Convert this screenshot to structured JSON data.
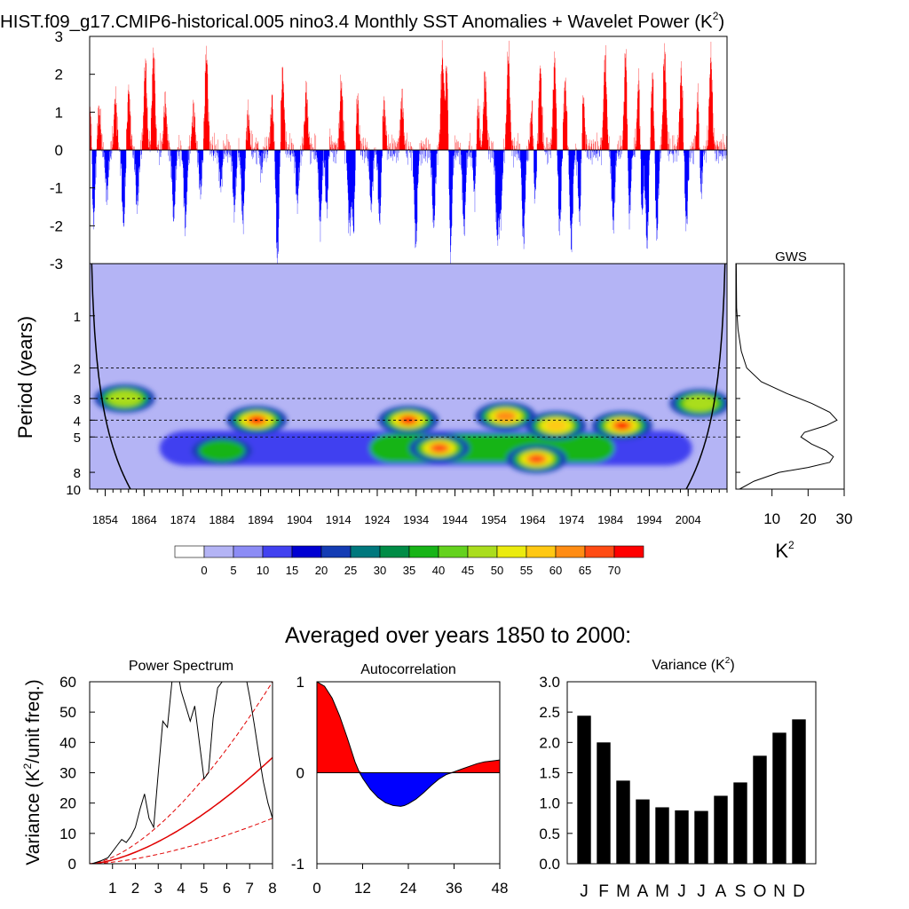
{
  "title": {
    "main": "HIST.f09_g17.CMIP6-historical.005 nino3.4 Monthly SST Anomalies + Wavelet Power (K",
    "sup": "2",
    "close": ")"
  },
  "subtitle": "Averaged over years 1850 to 2000:",
  "colors": {
    "positive": "#ff0000",
    "negative": "#0000ff",
    "spectrum_red": "#e00000",
    "bar": "#000000"
  },
  "chart_data": [
    {
      "type": "bar",
      "name": "timeseries",
      "title": "SST Anomalies",
      "ylim": [
        -3,
        3
      ],
      "yticks": [
        "-3",
        "-2",
        "-1",
        "0",
        "1",
        "2",
        "3"
      ],
      "xlim": [
        1850,
        2014
      ],
      "peaks_x": [
        1850.3,
        1852.4,
        1856.6,
        1860.0,
        1864.3,
        1866.4,
        1869.4,
        1876.7,
        1880.0,
        1883.9,
        1890.7,
        1893.8,
        1896.9,
        1899.6,
        1905.7,
        1911.4,
        1914.7,
        1918.8,
        1925.7,
        1930.3,
        1940.7,
        1941.9,
        1949.8,
        1951.7,
        1957.7,
        1963.9,
        1965.9,
        1969.6,
        1972.3,
        1976.9,
        1982.6,
        1987.9,
        1991.3,
        1994.8,
        1997.9,
        2002.2,
        2006.6,
        2009.8
      ],
      "peaks_y": [
        1.5,
        1.1,
        1.4,
        1.6,
        2.3,
        2.6,
        1.3,
        1.1,
        2.6,
        1.2,
        1.0,
        1.3,
        1.3,
        2.1,
        1.6,
        1.2,
        1.8,
        1.5,
        1.3,
        1.4,
        2.5,
        2.3,
        1.4,
        2.0,
        2.6,
        1.7,
        2.2,
        2.4,
        1.8,
        1.6,
        2.5,
        2.7,
        2.2,
        2.0,
        2.6,
        2.1,
        2.0,
        2.5
      ],
      "troughs_x": [
        1850.9,
        1854.4,
        1858.7,
        1862.2,
        1871.6,
        1874.6,
        1878.5,
        1883.8,
        1887.2,
        1889.4,
        1893.9,
        1898.3,
        1903.4,
        1909.3,
        1911.1,
        1916.8,
        1917.9,
        1922.4,
        1924.6,
        1933.9,
        1938.5,
        1942.8,
        1946.3,
        1949.1,
        1954.8,
        1955.7,
        1961.6,
        1964.4,
        1970.9,
        1973.9,
        1976.1,
        1984.7,
        1988.8,
        1992.0,
        1993.4,
        1995.9,
        2003.5,
        2007.1
      ],
      "troughs_y": [
        -2.3,
        -1.2,
        -2.0,
        -1.5,
        -1.8,
        -2.0,
        -1.1,
        -2.1,
        -1.6,
        -1.9,
        -1.7,
        -2.9,
        -1.4,
        -2.0,
        -2.4,
        -2.0,
        -2.1,
        -1.5,
        -1.9,
        -2.5,
        -2.0,
        -2.8,
        -2.1,
        -1.4,
        -2.2,
        -1.7,
        -2.4,
        -1.8,
        -2.1,
        -2.5,
        -2.0,
        -2.0,
        -1.9,
        -2.0,
        -2.5,
        -2.3,
        -2.0,
        -1.7
      ]
    },
    {
      "type": "heatmap",
      "name": "wavelet",
      "ylabel": "Period (years)",
      "xticks": [
        "1854",
        "1864",
        "1874",
        "1884",
        "1894",
        "1904",
        "1914",
        "1924",
        "1934",
        "1944",
        "1954",
        "1964",
        "1974",
        "1984",
        "1994",
        "2004"
      ],
      "xtick_values": [
        1854,
        1864,
        1874,
        1884,
        1894,
        1904,
        1914,
        1924,
        1934,
        1944,
        1954,
        1964,
        1974,
        1984,
        1994,
        2004
      ],
      "yticks": [
        "1",
        "2",
        "3",
        "4",
        "5",
        "8",
        "10"
      ],
      "ytick_values": [
        1,
        2,
        3,
        4,
        5,
        8,
        10
      ],
      "dashed_periods": [
        2,
        3,
        4,
        5
      ],
      "ylim": [
        0.5,
        10
      ],
      "xlim": [
        1850,
        2014
      ],
      "hot_x": [
        1859,
        1893,
        1932,
        1940,
        1957,
        1965,
        1970,
        1987,
        1884,
        2007
      ],
      "hot_p": [
        3.0,
        4.0,
        4.0,
        5.8,
        3.8,
        6.7,
        4.3,
        4.3,
        6.0,
        3.2
      ],
      "hot_v": [
        45,
        72,
        72,
        65,
        63,
        68,
        55,
        72,
        42,
        45
      ]
    },
    {
      "type": "line",
      "name": "gws",
      "title": "GWS",
      "xlabel": "K",
      "xlabel_sup": "2",
      "xticks": [
        "10",
        "20",
        "30"
      ],
      "xtick_values": [
        10,
        20,
        30
      ],
      "xlim": [
        0,
        30
      ],
      "period": [
        0.5,
        0.9,
        1.2,
        1.6,
        2.0,
        2.4,
        2.8,
        3.2,
        3.6,
        4.0,
        4.3,
        4.7,
        5.0,
        5.5,
        6.0,
        6.5,
        7.0,
        7.5,
        8.0,
        9.0,
        10.0
      ],
      "power": [
        0.1,
        0.2,
        0.6,
        1.5,
        3.0,
        7.0,
        14.0,
        21.0,
        26.0,
        28.0,
        25.0,
        19.0,
        18.0,
        21.0,
        25.0,
        27.0,
        26.0,
        20.0,
        12.0,
        5.0,
        1.0
      ]
    },
    {
      "type": "colorbar",
      "name": "colorbar",
      "labels": [
        "0",
        "5",
        "10",
        "15",
        "20",
        "25",
        "30",
        "35",
        "40",
        "45",
        "50",
        "55",
        "60",
        "65",
        "70"
      ],
      "colors": [
        "#ffffff",
        "#b4b4f5",
        "#8c8cf5",
        "#4141f0",
        "#0000d2",
        "#143cb4",
        "#00787d",
        "#008c46",
        "#18b418",
        "#64d21e",
        "#aadd1e",
        "#ebeb0f",
        "#ffc814",
        "#ff8c14",
        "#ff4b14",
        "#ff0000"
      ]
    },
    {
      "type": "line",
      "name": "power_spectrum",
      "title": "Power Spectrum",
      "ylabel": "Variance (K",
      "ylabel_sup": "2",
      "ylabel_tail": "/unit freq.)",
      "xticks": [
        "1",
        "2",
        "3",
        "4",
        "5",
        "6",
        "7",
        "8"
      ],
      "yticks": [
        "0",
        "10",
        "20",
        "30",
        "40",
        "50",
        "60"
      ],
      "xlim": [
        0,
        8
      ],
      "ylim": [
        0,
        60
      ],
      "x": [
        0.1,
        0.5,
        0.8,
        1.0,
        1.2,
        1.4,
        1.6,
        1.8,
        2.0,
        2.2,
        2.4,
        2.6,
        2.8,
        3.0,
        3.2,
        3.4,
        3.6,
        3.8,
        4.0,
        4.2,
        4.4,
        4.6,
        4.8,
        5.0,
        5.2,
        5.4,
        5.6,
        5.8,
        6.0,
        6.2,
        6.4,
        6.6,
        6.8,
        7.0,
        7.2,
        7.4,
        7.6,
        7.8,
        8.0
      ],
      "y": [
        0.0,
        1.0,
        2.0,
        4.0,
        6.0,
        8.0,
        7.0,
        9.0,
        12.0,
        18.0,
        23.0,
        15.0,
        12.0,
        30.0,
        47.0,
        45.0,
        60.0,
        66.0,
        57.0,
        52.0,
        47.0,
        52.0,
        40.0,
        28.0,
        30.0,
        48.0,
        58.0,
        60.0,
        62.0,
        64.0,
        66.0,
        66.0,
        63.0,
        55.0,
        46.0,
        36.0,
        27.0,
        20.0,
        15.0
      ],
      "red_theory_max": 35,
      "red_upper_max": 60,
      "red_lower_max": 15
    },
    {
      "type": "area",
      "name": "autocorrelation",
      "title": "Autocorrelation",
      "xticks": [
        "0",
        "12",
        "24",
        "36",
        "48"
      ],
      "xtick_values": [
        0,
        12,
        24,
        36,
        48
      ],
      "yticks": [
        "-1",
        "0",
        "1"
      ],
      "ytick_values": [
        -1,
        0,
        1
      ],
      "xlim": [
        0,
        48
      ],
      "ylim": [
        -1,
        1
      ],
      "lag": [
        0,
        2,
        4,
        6,
        8,
        10,
        11,
        12,
        14,
        16,
        18,
        20,
        22,
        23,
        24,
        26,
        28,
        30,
        32,
        34,
        36,
        38,
        40,
        42,
        44,
        46,
        48
      ],
      "acf": [
        1.0,
        0.95,
        0.82,
        0.62,
        0.38,
        0.12,
        0.02,
        -0.06,
        -0.18,
        -0.27,
        -0.33,
        -0.36,
        -0.37,
        -0.36,
        -0.34,
        -0.29,
        -0.22,
        -0.14,
        -0.07,
        -0.02,
        0.01,
        0.04,
        0.07,
        0.1,
        0.12,
        0.13,
        0.14
      ]
    },
    {
      "type": "bar",
      "name": "variance",
      "title": "Variance (K",
      "title_sup": "2",
      "title_close": ")",
      "categories": [
        "J",
        "F",
        "M",
        "A",
        "M",
        "J",
        "J",
        "A",
        "S",
        "O",
        "N",
        "D"
      ],
      "values": [
        2.44,
        2.0,
        1.37,
        1.06,
        0.93,
        0.88,
        0.87,
        1.12,
        1.34,
        1.78,
        2.16,
        2.38
      ],
      "yticks": [
        "0.0",
        "0.5",
        "1.0",
        "1.5",
        "2.0",
        "2.5",
        "3.0"
      ],
      "ytick_values": [
        0.0,
        0.5,
        1.0,
        1.5,
        2.0,
        2.5,
        3.0
      ],
      "ylim": [
        0,
        3
      ]
    }
  ]
}
